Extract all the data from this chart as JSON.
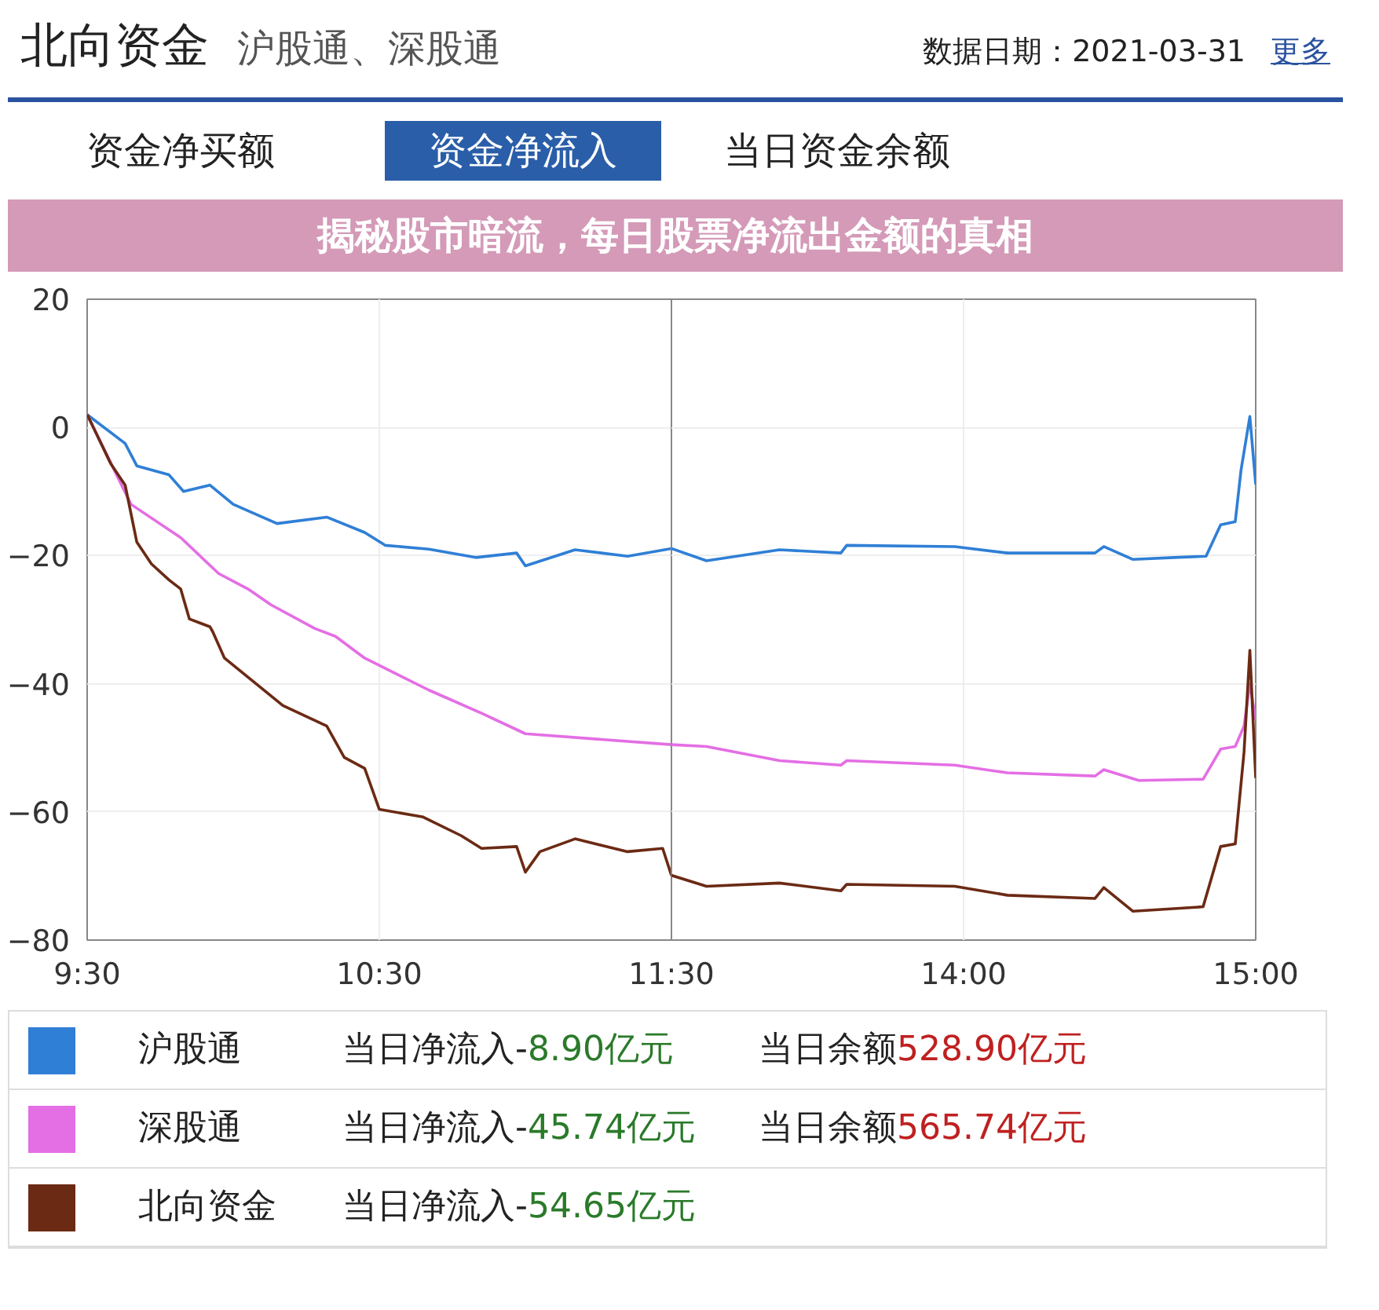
{
  "chart_data": [
    {
      "type": "line",
      "title": "北向资金",
      "subtitle": "沪股通、深股通",
      "annotations": [
        "数据日期：2021-03-31",
        "更多",
        "资金净买额",
        "资金净流入",
        "当日资金余额",
        "揭秘股市暗流，每日股票净流出金额的真相",
        "当日净流入-8.90亿元",
        "当日余额528.90亿元",
        "当日净流入-45.74亿元",
        "当日余额565.74亿元",
        "当日净流入-54.65亿元"
      ],
      "xlim": [
        9.5,
        11.5
      ],
      "ylim": [
        -80,
        20
      ],
      "xticks": [
        {
          "value": 9.5,
          "label": "9:30"
        },
        {
          "value": 10.5,
          "label": "10:30"
        },
        {
          "value": 11.5,
          "label": "11:30"
        }
      ],
      "yticks": [
        20,
        0,
        -20,
        -40,
        -60,
        -80
      ],
      "grid": true,
      "legend": "bottom",
      "series": [
        {
          "name": "沪股通",
          "color": "#2f7fd6",
          "x": [
            9.5,
            9.63,
            9.67,
            9.78,
            9.83,
            9.92,
            10,
            10.15,
            10.32,
            10.45,
            10.52,
            10.67,
            10.83,
            10.97,
            11,
            11.17,
            11.35,
            11.5
          ],
          "values": [
            2,
            -2.5,
            -6,
            -7.4,
            -10,
            -9,
            -12,
            -15,
            -14,
            -16.4,
            -18.4,
            -19,
            -20.3,
            -19.6,
            -21.6,
            -19.1,
            -20.1,
            -18.9
          ]
        },
        {
          "name": "深股通",
          "color": "#e46ee4",
          "x": [
            9.5,
            9.65,
            9.82,
            9.95,
            10.05,
            10.13,
            10.28,
            10.35,
            10.45,
            10.67,
            10.85,
            11,
            11.5
          ],
          "values": [
            2,
            -12,
            -17.2,
            -22.8,
            -25.2,
            -27.7,
            -31.4,
            -32.6,
            -36,
            -41,
            -44.6,
            -47.8,
            -49.5
          ]
        },
        {
          "name": "北向资金",
          "color": "#6b2a14",
          "x": [
            9.5,
            9.58,
            9.63,
            9.67,
            9.72,
            9.78,
            9.82,
            9.85,
            9.92,
            9.93,
            9.97,
            10.17,
            10.32,
            10.38,
            10.45,
            10.5,
            10.65,
            10.78,
            10.85,
            10.97,
            11,
            11.05,
            11.17,
            11.35,
            11.47,
            11.5
          ],
          "values": [
            2,
            -5.6,
            -9,
            -17.9,
            -21.3,
            -23.8,
            -25.2,
            -29.9,
            -31.1,
            -31.9,
            -36,
            -43.4,
            -46.6,
            -51.5,
            -53.2,
            -59.6,
            -60.8,
            -63.7,
            -65.7,
            -65.4,
            -69.4,
            -66.2,
            -64.2,
            -66.2,
            -65.7,
            -69.9
          ]
        }
      ]
    },
    {
      "type": "line",
      "xlim": [
        13,
        15
      ],
      "ylim": [
        -80,
        20
      ],
      "xticks": [
        {
          "value": 14,
          "label": "14:00"
        },
        {
          "value": 15,
          "label": "15:00"
        }
      ],
      "yticks": [
        20,
        0,
        -20,
        -40,
        -60,
        -80
      ],
      "grid": true,
      "tick_labels": "x",
      "series": [
        {
          "color": "#2f7fd6",
          "x": [
            13,
            13.12,
            13.37,
            13.58,
            13.6,
            13.97,
            14.15,
            14.45,
            14.48,
            14.58,
            14.72,
            14.83,
            14.88,
            14.93,
            14.95,
            14.98,
            15
          ],
          "values": [
            -18.9,
            -20.8,
            -19.1,
            -19.6,
            -18.4,
            -18.6,
            -19.6,
            -19.6,
            -18.6,
            -20.6,
            -20.3,
            -20.1,
            -15.2,
            -14.7,
            -6.6,
            1.7,
            -8.9
          ]
        },
        {
          "color": "#e46ee4",
          "x": [
            13,
            13.12,
            13.37,
            13.58,
            13.6,
            13.97,
            14.15,
            14.45,
            14.48,
            14.6,
            14.82,
            14.88,
            14.93,
            14.96,
            14.98,
            15
          ],
          "values": [
            -49.5,
            -49.8,
            -52,
            -52.7,
            -52,
            -52.7,
            -53.9,
            -54.4,
            -53.4,
            -55.1,
            -54.9,
            -50.2,
            -49.8,
            -46.6,
            -40,
            -45.7
          ]
        },
        {
          "color": "#6b2a14",
          "x": [
            13,
            13.12,
            13.37,
            13.58,
            13.6,
            13.97,
            14.15,
            14.45,
            14.48,
            14.58,
            14.82,
            14.88,
            14.93,
            14.96,
            14.98,
            15
          ],
          "values": [
            -69.9,
            -71.6,
            -71.1,
            -72.3,
            -71.3,
            -71.6,
            -73,
            -73.5,
            -71.8,
            -75.5,
            -74.8,
            -65.4,
            -65,
            -50.7,
            -34.8,
            -54.7
          ]
        }
      ]
    }
  ]
}
